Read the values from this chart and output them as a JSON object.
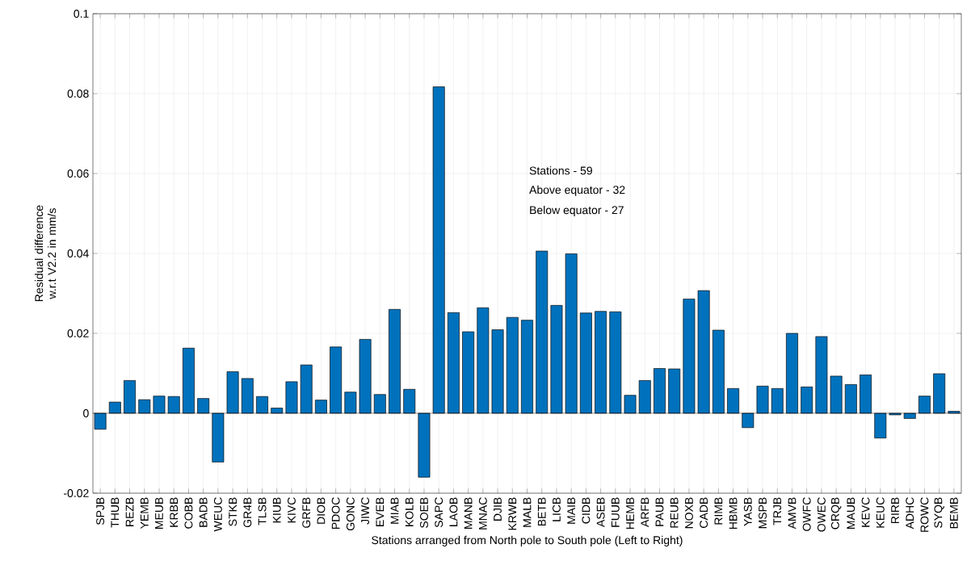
{
  "chart_data": {
    "type": "bar",
    "xlabel": "Stations arranged from North pole to South pole (Left to Right)",
    "ylabel": "Residual difference w.r.t V2.2 in mm/s",
    "annotations": [
      "Stations - 59",
      "Above equator - 32",
      "Below equator - 27"
    ],
    "categories": [
      "SPJB",
      "THUB",
      "REZB",
      "YEMB",
      "MEUB",
      "KRBB",
      "COBB",
      "BADB",
      "WEUC",
      "STKB",
      "GR4B",
      "TLSB",
      "KIUB",
      "KIVC",
      "GRFB",
      "DIOB",
      "PDOC",
      "GONC",
      "JIWC",
      "EVEB",
      "MIAB",
      "KOLB",
      "SOEB",
      "SAPC",
      "LAOB",
      "MANB",
      "MNAC",
      "DJIB",
      "KRWB",
      "MALB",
      "BETB",
      "LICB",
      "MAIB",
      "CIDB",
      "ASEB",
      "FUUB",
      "HEMB",
      "ARFB",
      "PAUB",
      "REUB",
      "NOXB",
      "CADB",
      "RIMB",
      "HBMB",
      "YASB",
      "MSPB",
      "TRJB",
      "AMVB",
      "OWFC",
      "OWEC",
      "CRQB",
      "MAUB",
      "KEVC",
      "KEUC",
      "RIRB",
      "ADHC",
      "ROWC",
      "SYQB",
      "BEMB"
    ],
    "values": [
      -0.004,
      0.0028,
      0.0082,
      0.0034,
      0.0043,
      0.0042,
      0.0163,
      0.0037,
      -0.0122,
      0.0104,
      0.0087,
      0.0042,
      0.0013,
      0.0079,
      0.0121,
      0.0033,
      0.0166,
      0.0053,
      0.0185,
      0.0047,
      0.026,
      0.006,
      -0.016,
      0.0817,
      0.0252,
      0.0204,
      0.0264,
      0.0209,
      0.024,
      0.0233,
      0.0406,
      0.027,
      0.0399,
      0.0251,
      0.0255,
      0.0254,
      0.0045,
      0.0082,
      0.0112,
      0.0111,
      0.0286,
      0.0307,
      0.0208,
      0.0062,
      -0.0036,
      0.0068,
      0.0062,
      0.02,
      0.0066,
      0.0192,
      0.0093,
      0.0072,
      0.0096,
      -0.0062,
      -0.0004,
      -0.0013,
      0.0043,
      0.0099,
      0.0005
    ],
    "color": "#0072bd",
    "ylim": [
      -0.02,
      0.1
    ],
    "yticks": [
      -0.02,
      0,
      0.02,
      0.04,
      0.06,
      0.08,
      0.1
    ],
    "grid": true
  }
}
